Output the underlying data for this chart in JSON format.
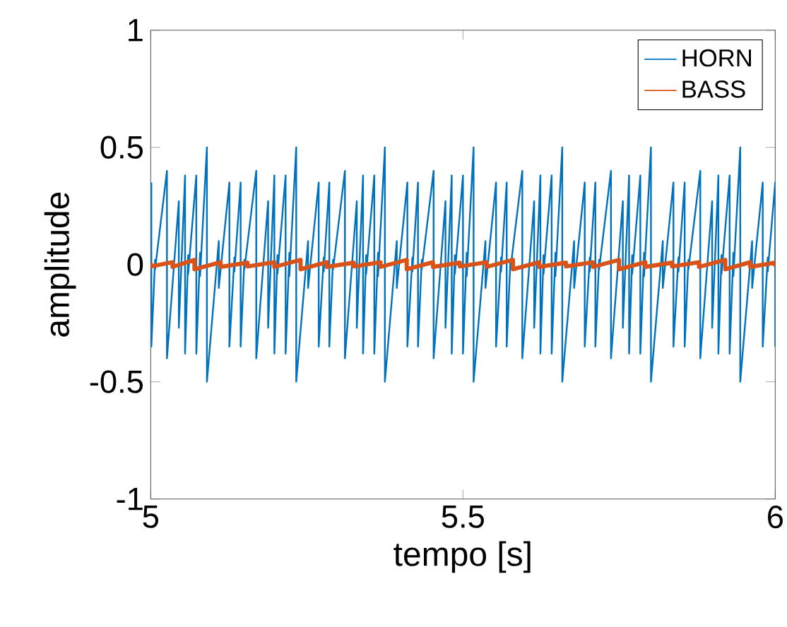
{
  "chart_data": {
    "type": "line",
    "xlabel": "tempo [s]",
    "ylabel": "amplitude",
    "xlim": [
      5,
      6
    ],
    "ylim": [
      -1,
      1
    ],
    "xticks": [
      5,
      5.5,
      6
    ],
    "yticks": [
      -1,
      -0.5,
      0,
      0.5,
      1
    ],
    "legend": "top right",
    "grid": false,
    "series": [
      {
        "name": "HORN",
        "color": "#0072bd",
        "x": [
          5.001,
          5.001,
          5.007,
          5.007,
          5.026,
          5.026,
          5.045,
          5.045,
          5.055,
          5.055,
          5.06,
          5.06,
          5.073,
          5.073,
          5.079,
          5.079,
          5.09,
          5.09,
          5.109,
          5.109,
          5.126,
          5.126,
          5.134,
          5.134,
          5.144,
          5.144,
          5.15,
          5.15,
          5.169,
          5.169,
          5.188,
          5.188,
          5.198,
          5.198,
          5.203,
          5.203,
          5.216,
          5.216,
          5.222,
          5.222,
          5.233,
          5.233,
          5.252,
          5.252,
          5.269,
          5.269,
          5.277,
          5.277,
          5.286,
          5.286,
          5.292,
          5.292,
          5.311,
          5.311,
          5.33,
          5.33,
          5.34,
          5.34,
          5.345,
          5.345,
          5.358,
          5.358,
          5.364,
          5.364,
          5.375,
          5.375,
          5.394,
          5.394,
          5.411,
          5.411,
          5.419,
          5.419,
          5.428,
          5.428,
          5.434,
          5.434,
          5.453,
          5.453,
          5.472,
          5.472,
          5.482,
          5.482,
          5.487,
          5.487,
          5.5,
          5.5,
          5.506,
          5.506,
          5.517,
          5.517,
          5.536,
          5.536,
          5.553,
          5.553,
          5.561,
          5.561,
          5.57,
          5.57,
          5.576,
          5.576,
          5.595,
          5.595,
          5.614,
          5.614,
          5.624,
          5.624,
          5.629,
          5.629,
          5.642,
          5.642,
          5.648,
          5.648,
          5.659,
          5.659,
          5.678,
          5.678,
          5.695,
          5.695,
          5.703,
          5.703,
          5.712,
          5.712,
          5.718,
          5.718,
          5.737,
          5.737,
          5.756,
          5.756,
          5.766,
          5.766,
          5.771,
          5.771,
          5.784,
          5.784,
          5.79,
          5.79,
          5.801,
          5.801,
          5.82,
          5.82,
          5.837,
          5.837,
          5.845,
          5.845,
          5.855,
          5.855,
          5.861,
          5.861,
          5.88,
          5.88,
          5.899,
          5.899,
          5.909,
          5.909,
          5.914,
          5.914,
          5.927,
          5.927,
          5.933,
          5.933,
          5.944,
          5.944,
          5.963,
          5.963,
          5.98,
          5.98,
          5.988,
          5.988,
          6.0,
          6.0
        ],
        "values": [
          0.35,
          -0.35,
          0.02,
          -0.02,
          0.4,
          -0.4,
          0.27,
          -0.27,
          0.38,
          -0.38,
          0.04,
          -0.04,
          0.38,
          -0.38,
          0.05,
          -0.05,
          0.5,
          -0.5,
          0.1,
          -0.1,
          0.35,
          -0.35,
          0.03,
          -0.03,
          0.35,
          -0.35,
          0.02,
          -0.02,
          0.4,
          -0.4,
          0.27,
          -0.27,
          0.38,
          -0.38,
          0.04,
          -0.04,
          0.38,
          -0.38,
          0.05,
          -0.05,
          0.5,
          -0.5,
          0.1,
          -0.1,
          0.35,
          -0.35,
          0.03,
          -0.03,
          0.35,
          -0.35,
          0.02,
          -0.02,
          0.4,
          -0.4,
          0.27,
          -0.27,
          0.38,
          -0.38,
          0.04,
          -0.04,
          0.38,
          -0.38,
          0.05,
          -0.05,
          0.5,
          -0.5,
          0.1,
          -0.1,
          0.35,
          -0.35,
          0.03,
          -0.03,
          0.35,
          -0.35,
          0.02,
          -0.02,
          0.4,
          -0.4,
          0.27,
          -0.27,
          0.38,
          -0.38,
          0.04,
          -0.04,
          0.38,
          -0.38,
          0.05,
          -0.05,
          0.5,
          -0.5,
          0.1,
          -0.1,
          0.35,
          -0.35,
          0.03,
          -0.03,
          0.35,
          -0.35,
          0.02,
          -0.02,
          0.4,
          -0.4,
          0.27,
          -0.27,
          0.38,
          -0.38,
          0.04,
          -0.04,
          0.38,
          -0.38,
          0.05,
          -0.05,
          0.5,
          -0.5,
          0.1,
          -0.1,
          0.35,
          -0.35,
          0.03,
          -0.03,
          0.35,
          -0.35,
          0.02,
          -0.02,
          0.4,
          -0.4,
          0.27,
          -0.27,
          0.38,
          -0.38,
          0.04,
          -0.04,
          0.38,
          -0.38,
          0.05,
          -0.05,
          0.5,
          -0.5,
          0.1,
          -0.1,
          0.35,
          -0.35,
          0.03,
          -0.03,
          0.35,
          -0.35,
          0.02,
          -0.02,
          0.4,
          -0.4,
          0.27,
          -0.27,
          0.38,
          -0.38,
          0.04,
          -0.04,
          0.38,
          -0.38,
          0.05,
          -0.05,
          0.5,
          -0.5,
          0.1,
          -0.1,
          0.35,
          -0.35,
          0.03,
          -0.03,
          0.35,
          -0.35
        ]
      },
      {
        "name": "BASS",
        "color": "#d95319",
        "x": [
          5.0,
          5.0,
          5.035,
          5.035,
          5.07,
          5.07,
          5.112,
          5.112,
          5.155,
          5.155,
          5.198,
          5.198,
          5.24,
          5.24,
          5.282,
          5.282,
          5.325,
          5.325,
          5.368,
          5.368,
          5.41,
          5.41,
          5.452,
          5.452,
          5.495,
          5.495,
          5.538,
          5.538,
          5.58,
          5.58,
          5.622,
          5.622,
          5.665,
          5.665,
          5.708,
          5.708,
          5.75,
          5.75,
          5.792,
          5.792,
          5.835,
          5.835,
          5.878,
          5.878,
          5.92,
          5.92,
          5.96,
          5.96,
          6.0,
          6.0
        ],
        "values": [
          0.008,
          -0.008,
          0.01,
          -0.01,
          0.02,
          -0.02,
          0.01,
          -0.01,
          0.008,
          -0.008,
          0.01,
          -0.01,
          0.02,
          -0.02,
          0.01,
          -0.01,
          0.008,
          -0.008,
          0.01,
          -0.01,
          0.02,
          -0.02,
          0.01,
          -0.01,
          0.008,
          -0.008,
          0.01,
          -0.01,
          0.02,
          -0.02,
          0.01,
          -0.01,
          0.008,
          -0.008,
          0.01,
          -0.01,
          0.02,
          -0.02,
          0.01,
          -0.01,
          0.008,
          -0.008,
          0.01,
          -0.01,
          0.02,
          -0.02,
          0.01,
          -0.01,
          0.008,
          -0.008
        ]
      }
    ]
  }
}
